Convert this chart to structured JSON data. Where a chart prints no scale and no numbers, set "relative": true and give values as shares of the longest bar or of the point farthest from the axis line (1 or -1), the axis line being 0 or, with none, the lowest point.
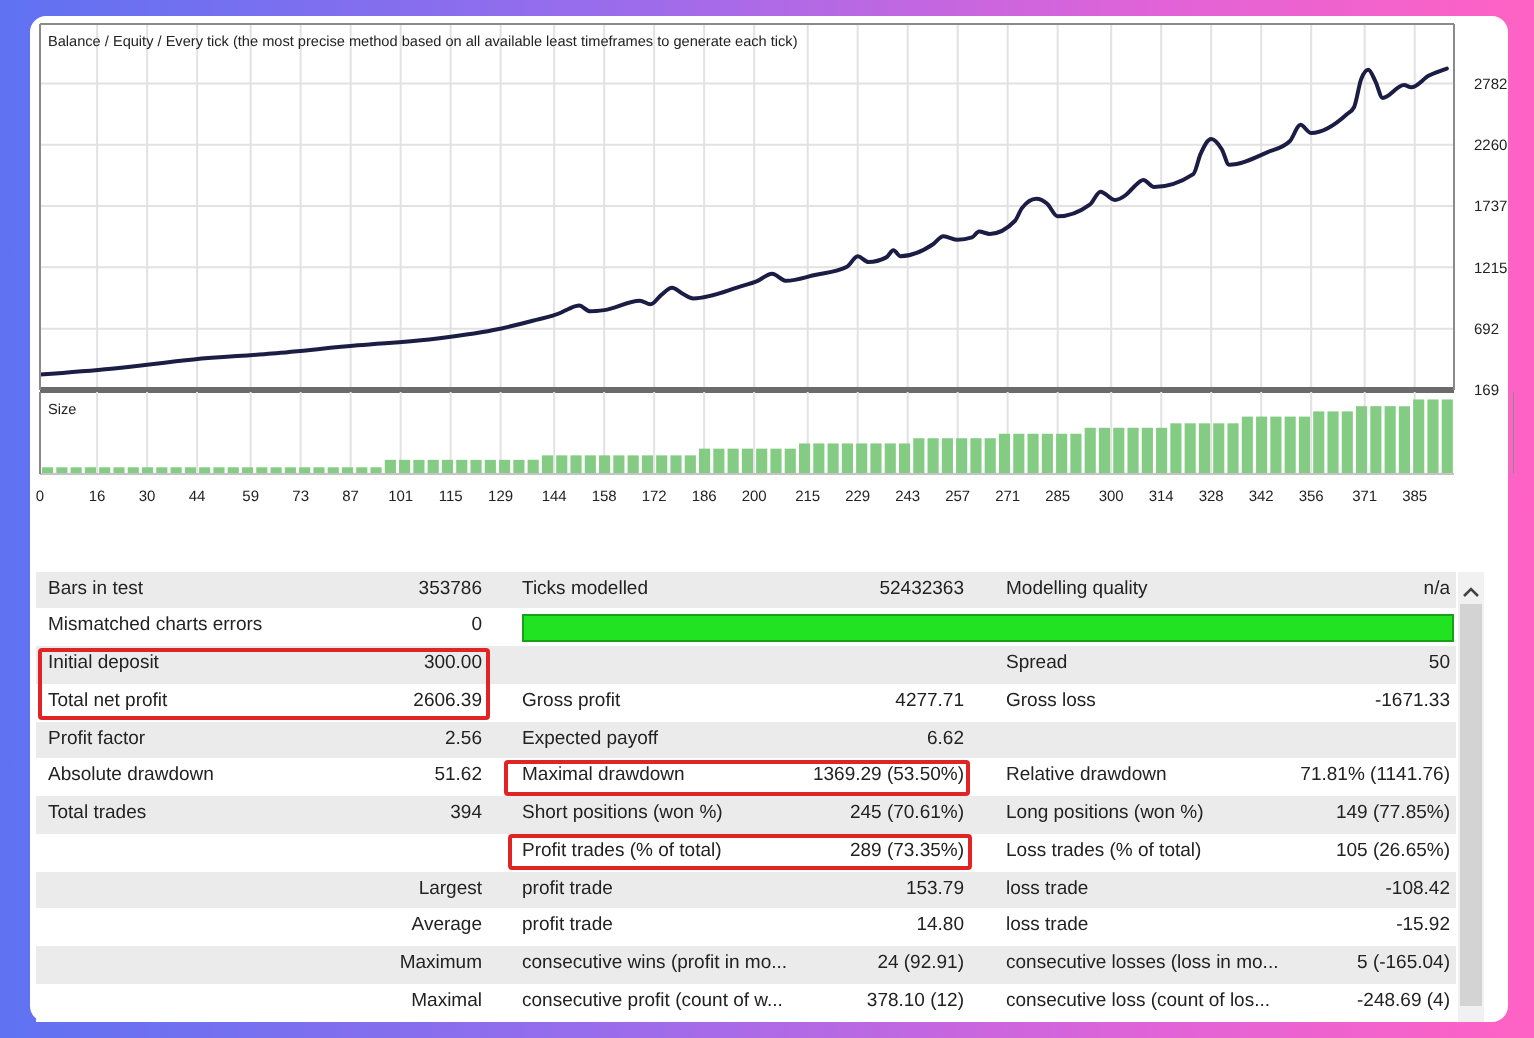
{
  "chart_data": [
    {
      "type": "line",
      "title": "Balance / Equity / Every tick (the most precise method based on all available least timeframes to generate each tick)",
      "color": "#1b1d45",
      "x": [
        0,
        20,
        43,
        65,
        89,
        109,
        127,
        138,
        146,
        148,
        151,
        154,
        158,
        168,
        171,
        174,
        177,
        180,
        183,
        196,
        201,
        205,
        209,
        217,
        226,
        229,
        232,
        237,
        239,
        241,
        250,
        253,
        257,
        261,
        263,
        266,
        273,
        275,
        279,
        282,
        285,
        294,
        297,
        301,
        304,
        306,
        309,
        312,
        323,
        325,
        328,
        331,
        333,
        344,
        350,
        353,
        356,
        366,
        368,
        370,
        372,
        374,
        376,
        382,
        384,
        389,
        394
      ],
      "values": [
        300,
        350,
        430,
        480,
        550,
        600,
        680,
        760,
        830,
        860,
        890,
        840,
        850,
        930,
        900,
        980,
        1040,
        990,
        950,
        1050,
        1100,
        1160,
        1100,
        1150,
        1220,
        1310,
        1260,
        1300,
        1360,
        1310,
        1410,
        1480,
        1450,
        1470,
        1520,
        1500,
        1610,
        1720,
        1800,
        1760,
        1650,
        1750,
        1860,
        1790,
        1830,
        1890,
        1960,
        1900,
        2010,
        2180,
        2310,
        2220,
        2090,
        2200,
        2290,
        2430,
        2360,
        2520,
        2580,
        2820,
        2900,
        2800,
        2660,
        2770,
        2750,
        2850,
        2910
      ],
      "xlim": [
        0,
        396
      ],
      "xticks": [
        0,
        16,
        30,
        44,
        59,
        73,
        87,
        101,
        115,
        129,
        144,
        158,
        172,
        186,
        200,
        215,
        229,
        243,
        257,
        271,
        285,
        300,
        314,
        328,
        342,
        356,
        371,
        385
      ],
      "ylim": [
        169,
        3290
      ],
      "yticks": [
        169,
        692,
        1215,
        1737,
        2260,
        2782
      ],
      "grid": true,
      "tick_labels": "y"
    },
    {
      "type": "bar",
      "title": "Size",
      "color": "#84cc84",
      "relative": true,
      "x": [
        2,
        6,
        10,
        14,
        18,
        22,
        26,
        30,
        34,
        38,
        42,
        46,
        50,
        54,
        58,
        62,
        66,
        70,
        74,
        78,
        82,
        86,
        90,
        94,
        98,
        102,
        106,
        110,
        114,
        118,
        122,
        126,
        130,
        134,
        138,
        142,
        146,
        150,
        154,
        158,
        162,
        166,
        170,
        174,
        178,
        182,
        186,
        190,
        194,
        198,
        202,
        206,
        210,
        214,
        218,
        222,
        226,
        230,
        234,
        238,
        242,
        246,
        250,
        254,
        258,
        262,
        266,
        270,
        274,
        278,
        282,
        286,
        290,
        294,
        298,
        302,
        306,
        310,
        314,
        318,
        322,
        326,
        330,
        334,
        338,
        342,
        346,
        350,
        354,
        358,
        362,
        366,
        370,
        374,
        378,
        382,
        386,
        390,
        394
      ],
      "values": [
        0.09,
        0.09,
        0.09,
        0.09,
        0.09,
        0.09,
        0.09,
        0.09,
        0.09,
        0.09,
        0.09,
        0.09,
        0.09,
        0.09,
        0.09,
        0.09,
        0.09,
        0.09,
        0.09,
        0.09,
        0.09,
        0.09,
        0.09,
        0.09,
        0.19,
        0.19,
        0.19,
        0.19,
        0.19,
        0.19,
        0.19,
        0.19,
        0.19,
        0.19,
        0.19,
        0.25,
        0.25,
        0.25,
        0.25,
        0.25,
        0.25,
        0.25,
        0.25,
        0.25,
        0.25,
        0.25,
        0.34,
        0.34,
        0.34,
        0.34,
        0.34,
        0.34,
        0.34,
        0.41,
        0.41,
        0.41,
        0.41,
        0.41,
        0.41,
        0.41,
        0.41,
        0.48,
        0.48,
        0.48,
        0.48,
        0.48,
        0.48,
        0.54,
        0.54,
        0.54,
        0.54,
        0.54,
        0.54,
        0.62,
        0.62,
        0.62,
        0.62,
        0.62,
        0.62,
        0.68,
        0.68,
        0.68,
        0.68,
        0.68,
        0.77,
        0.77,
        0.77,
        0.77,
        0.77,
        0.84,
        0.84,
        0.84,
        0.91,
        0.91,
        0.91,
        0.91,
        1,
        1,
        1
      ],
      "xlim": [
        0,
        396
      ],
      "xticks": [
        0,
        16,
        30,
        44,
        59,
        73,
        87,
        101,
        115,
        129,
        144,
        158,
        172,
        186,
        200,
        215,
        229,
        243,
        257,
        271,
        285,
        300,
        314,
        328,
        342,
        356,
        371,
        385
      ],
      "grid": "x",
      "tick_labels": "x"
    },
    {
      "type": "other",
      "annotations": [
        "Bars in test",
        "353786",
        "Ticks modelled",
        "52432363",
        "Modelling quality",
        "n/a",
        "Mismatched charts errors",
        "0",
        null,
        null,
        null,
        null,
        "Initial deposit",
        "300.00",
        null,
        null,
        "Spread",
        "50",
        "Total net profit",
        "2606.39",
        "Gross profit",
        "4277.71",
        "Gross loss",
        "-1671.33",
        "Profit factor",
        "2.56",
        "Expected payoff",
        "6.62",
        null,
        null,
        "Absolute drawdown",
        "51.62",
        "Maximal drawdown",
        "1369.29 (53.50%)",
        "Relative drawdown",
        "71.81% (1141.76)",
        "Total trades",
        "394",
        "Short positions (won %)",
        "245 (70.61%)",
        "Long positions (won %)",
        "149 (77.85%)",
        null,
        null,
        "Profit trades (% of total)",
        "289 (73.35%)",
        "Loss trades (% of total)",
        "105 (26.65%)",
        null,
        "Largest",
        "profit trade",
        "153.79",
        "loss trade",
        "-108.42",
        null,
        "Average",
        "profit trade",
        "14.80",
        "loss trade",
        "-15.92",
        null,
        "Maximum",
        "consecutive wins (profit in mo...",
        "24 (92.91)",
        "consecutive losses (loss in mo...",
        "5 (-165.04)",
        null,
        "Maximal",
        "consecutive profit (count of w...",
        "378.10 (12)",
        "consecutive loss (count of los...",
        "-248.69 (4)"
      ]
    }
  ]
}
